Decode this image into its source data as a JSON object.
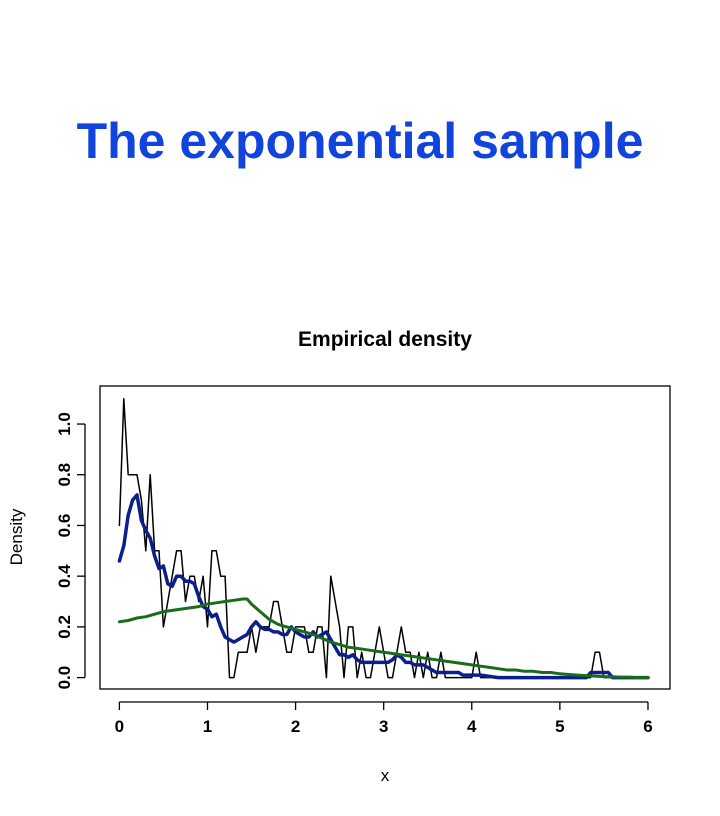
{
  "slide": {
    "title": "The exponential sample"
  },
  "colors": {
    "title": "#1144dd",
    "raw": "#000000",
    "kernel": "#0a1e8c",
    "smooth": "#1a6b1a"
  },
  "chart_data": {
    "type": "line",
    "title": "Empirical density",
    "xlabel": "x",
    "ylabel": "Density",
    "xlim": [
      -0.22,
      6.25
    ],
    "ylim": [
      -0.045,
      1.15
    ],
    "xticks": [
      0,
      1,
      2,
      3,
      4,
      5,
      6
    ],
    "yticks": [
      0.0,
      0.2,
      0.4,
      0.6,
      0.8,
      1.0
    ],
    "ytick_labels": [
      "0.0",
      "0.2",
      "0.4",
      "0.6",
      "0.8",
      "1.0"
    ],
    "grid": false,
    "series": [
      {
        "key": "raw",
        "color": "#000000",
        "width": 1.5,
        "points": [
          [
            0,
            0.6
          ],
          [
            0.05,
            1.1
          ],
          [
            0.1,
            0.8
          ],
          [
            0.15,
            0.8
          ],
          [
            0.2,
            0.8
          ],
          [
            0.25,
            0.7
          ],
          [
            0.3,
            0.5
          ],
          [
            0.35,
            0.8
          ],
          [
            0.4,
            0.5
          ],
          [
            0.45,
            0.5
          ],
          [
            0.5,
            0.2
          ],
          [
            0.55,
            0.3
          ],
          [
            0.6,
            0.4
          ],
          [
            0.65,
            0.5
          ],
          [
            0.7,
            0.5
          ],
          [
            0.75,
            0.3
          ],
          [
            0.8,
            0.4
          ],
          [
            0.85,
            0.4
          ],
          [
            0.9,
            0.3
          ],
          [
            0.95,
            0.4
          ],
          [
            1.0,
            0.2
          ],
          [
            1.05,
            0.5
          ],
          [
            1.1,
            0.5
          ],
          [
            1.15,
            0.4
          ],
          [
            1.2,
            0.4
          ],
          [
            1.25,
            0.0
          ],
          [
            1.3,
            0.0
          ],
          [
            1.35,
            0.1
          ],
          [
            1.4,
            0.1
          ],
          [
            1.45,
            0.1
          ],
          [
            1.5,
            0.2
          ],
          [
            1.55,
            0.1
          ],
          [
            1.6,
            0.2
          ],
          [
            1.65,
            0.2
          ],
          [
            1.7,
            0.2
          ],
          [
            1.75,
            0.3
          ],
          [
            1.8,
            0.3
          ],
          [
            1.85,
            0.2
          ],
          [
            1.9,
            0.1
          ],
          [
            1.95,
            0.1
          ],
          [
            2.0,
            0.2
          ],
          [
            2.05,
            0.2
          ],
          [
            2.1,
            0.2
          ],
          [
            2.15,
            0.1
          ],
          [
            2.2,
            0.1
          ],
          [
            2.25,
            0.2
          ],
          [
            2.3,
            0.2
          ],
          [
            2.35,
            0.0
          ],
          [
            2.4,
            0.4
          ],
          [
            2.45,
            0.3
          ],
          [
            2.5,
            0.2
          ],
          [
            2.55,
            0.0
          ],
          [
            2.6,
            0.2
          ],
          [
            2.65,
            0.2
          ],
          [
            2.7,
            0.0
          ],
          [
            2.75,
            0.1
          ],
          [
            2.8,
            0.0
          ],
          [
            2.85,
            0.0
          ],
          [
            2.9,
            0.1
          ],
          [
            2.95,
            0.2
          ],
          [
            3.0,
            0.1
          ],
          [
            3.05,
            0.0
          ],
          [
            3.1,
            0.0
          ],
          [
            3.15,
            0.1
          ],
          [
            3.2,
            0.2
          ],
          [
            3.25,
            0.1
          ],
          [
            3.3,
            0.1
          ],
          [
            3.35,
            0.0
          ],
          [
            3.4,
            0.1
          ],
          [
            3.45,
            0.0
          ],
          [
            3.5,
            0.1
          ],
          [
            3.55,
            0.0
          ],
          [
            3.6,
            0.0
          ],
          [
            3.65,
            0.1
          ],
          [
            3.7,
            0.0
          ],
          [
            3.75,
            0.0
          ],
          [
            3.8,
            0.0
          ],
          [
            3.85,
            0.0
          ],
          [
            3.9,
            0.0
          ],
          [
            3.95,
            0.0
          ],
          [
            4.0,
            0.0
          ],
          [
            4.05,
            0.1
          ],
          [
            4.1,
            0.0
          ],
          [
            4.3,
            0.0
          ],
          [
            4.35,
            0.0
          ],
          [
            5.35,
            0.0
          ],
          [
            5.4,
            0.1
          ],
          [
            5.45,
            0.1
          ],
          [
            5.5,
            0.0
          ],
          [
            6.0,
            0.0
          ]
        ]
      },
      {
        "key": "kernel",
        "color": "#0a1e8c",
        "width": 3.5,
        "points": [
          [
            0,
            0.46
          ],
          [
            0.05,
            0.52
          ],
          [
            0.1,
            0.64
          ],
          [
            0.15,
            0.7
          ],
          [
            0.2,
            0.72
          ],
          [
            0.25,
            0.62
          ],
          [
            0.3,
            0.58
          ],
          [
            0.35,
            0.55
          ],
          [
            0.4,
            0.48
          ],
          [
            0.45,
            0.43
          ],
          [
            0.5,
            0.44
          ],
          [
            0.55,
            0.37
          ],
          [
            0.6,
            0.36
          ],
          [
            0.65,
            0.4
          ],
          [
            0.7,
            0.4
          ],
          [
            0.75,
            0.38
          ],
          [
            0.8,
            0.38
          ],
          [
            0.85,
            0.37
          ],
          [
            0.9,
            0.32
          ],
          [
            0.95,
            0.28
          ],
          [
            1.0,
            0.27
          ],
          [
            1.05,
            0.24
          ],
          [
            1.1,
            0.25
          ],
          [
            1.15,
            0.2
          ],
          [
            1.2,
            0.16
          ],
          [
            1.25,
            0.15
          ],
          [
            1.3,
            0.14
          ],
          [
            1.35,
            0.15
          ],
          [
            1.4,
            0.16
          ],
          [
            1.45,
            0.17
          ],
          [
            1.5,
            0.2
          ],
          [
            1.55,
            0.22
          ],
          [
            1.6,
            0.2
          ],
          [
            1.65,
            0.19
          ],
          [
            1.7,
            0.19
          ],
          [
            1.75,
            0.18
          ],
          [
            1.8,
            0.18
          ],
          [
            1.85,
            0.17
          ],
          [
            1.9,
            0.17
          ],
          [
            1.95,
            0.2
          ],
          [
            2.0,
            0.18
          ],
          [
            2.05,
            0.17
          ],
          [
            2.1,
            0.16
          ],
          [
            2.15,
            0.16
          ],
          [
            2.2,
            0.18
          ],
          [
            2.25,
            0.16
          ],
          [
            2.3,
            0.17
          ],
          [
            2.35,
            0.18
          ],
          [
            2.4,
            0.15
          ],
          [
            2.45,
            0.12
          ],
          [
            2.5,
            0.09
          ],
          [
            2.55,
            0.09
          ],
          [
            2.6,
            0.08
          ],
          [
            2.65,
            0.09
          ],
          [
            2.7,
            0.07
          ],
          [
            2.75,
            0.06
          ],
          [
            2.8,
            0.06
          ],
          [
            2.85,
            0.06
          ],
          [
            2.9,
            0.06
          ],
          [
            2.95,
            0.06
          ],
          [
            3.0,
            0.06
          ],
          [
            3.05,
            0.06
          ],
          [
            3.1,
            0.07
          ],
          [
            3.15,
            0.09
          ],
          [
            3.2,
            0.08
          ],
          [
            3.25,
            0.06
          ],
          [
            3.3,
            0.06
          ],
          [
            3.35,
            0.05
          ],
          [
            3.4,
            0.05
          ],
          [
            3.45,
            0.05
          ],
          [
            3.5,
            0.04
          ],
          [
            3.55,
            0.03
          ],
          [
            3.6,
            0.02
          ],
          [
            3.65,
            0.02
          ],
          [
            3.7,
            0.02
          ],
          [
            3.75,
            0.02
          ],
          [
            3.8,
            0.02
          ],
          [
            3.85,
            0.02
          ],
          [
            3.9,
            0.01
          ],
          [
            3.95,
            0.01
          ],
          [
            4.0,
            0.01
          ],
          [
            4.1,
            0.01
          ],
          [
            4.3,
            0.0
          ],
          [
            4.35,
            0.0
          ],
          [
            5.3,
            0.0
          ],
          [
            5.35,
            0.02
          ],
          [
            5.45,
            0.02
          ],
          [
            5.55,
            0.02
          ],
          [
            5.6,
            0.0
          ],
          [
            6.0,
            0.0
          ]
        ]
      },
      {
        "key": "smooth",
        "color": "#1a6b1a",
        "width": 3,
        "points": [
          [
            0,
            0.22
          ],
          [
            0.1,
            0.225
          ],
          [
            0.2,
            0.235
          ],
          [
            0.3,
            0.24
          ],
          [
            0.4,
            0.25
          ],
          [
            0.5,
            0.26
          ],
          [
            0.6,
            0.265
          ],
          [
            0.7,
            0.27
          ],
          [
            0.8,
            0.275
          ],
          [
            0.9,
            0.28
          ],
          [
            1.0,
            0.29
          ],
          [
            1.1,
            0.295
          ],
          [
            1.2,
            0.3
          ],
          [
            1.3,
            0.305
          ],
          [
            1.4,
            0.31
          ],
          [
            1.45,
            0.31
          ],
          [
            1.5,
            0.29
          ],
          [
            1.6,
            0.26
          ],
          [
            1.7,
            0.23
          ],
          [
            1.8,
            0.21
          ],
          [
            1.9,
            0.2
          ],
          [
            2.0,
            0.19
          ],
          [
            2.1,
            0.18
          ],
          [
            2.2,
            0.17
          ],
          [
            2.3,
            0.155
          ],
          [
            2.4,
            0.14
          ],
          [
            2.5,
            0.13
          ],
          [
            2.6,
            0.12
          ],
          [
            2.7,
            0.115
          ],
          [
            2.8,
            0.11
          ],
          [
            2.9,
            0.105
          ],
          [
            3.0,
            0.1
          ],
          [
            3.1,
            0.095
          ],
          [
            3.2,
            0.09
          ],
          [
            3.3,
            0.085
          ],
          [
            3.4,
            0.08
          ],
          [
            3.5,
            0.075
          ],
          [
            3.6,
            0.07
          ],
          [
            3.7,
            0.065
          ],
          [
            3.8,
            0.06
          ],
          [
            3.9,
            0.055
          ],
          [
            4.0,
            0.05
          ],
          [
            4.1,
            0.045
          ],
          [
            4.2,
            0.04
          ],
          [
            4.3,
            0.035
          ],
          [
            4.4,
            0.03
          ],
          [
            4.5,
            0.03
          ],
          [
            4.6,
            0.025
          ],
          [
            4.7,
            0.025
          ],
          [
            4.8,
            0.02
          ],
          [
            4.9,
            0.02
          ],
          [
            5.0,
            0.015
          ],
          [
            5.1,
            0.012
          ],
          [
            5.2,
            0.01
          ],
          [
            5.3,
            0.008
          ],
          [
            5.4,
            0.006
          ],
          [
            5.5,
            0.004
          ],
          [
            5.6,
            0.003
          ],
          [
            5.7,
            0.002
          ],
          [
            5.8,
            0.001
          ],
          [
            5.9,
            0.0
          ],
          [
            6.0,
            0.0
          ]
        ]
      }
    ]
  }
}
